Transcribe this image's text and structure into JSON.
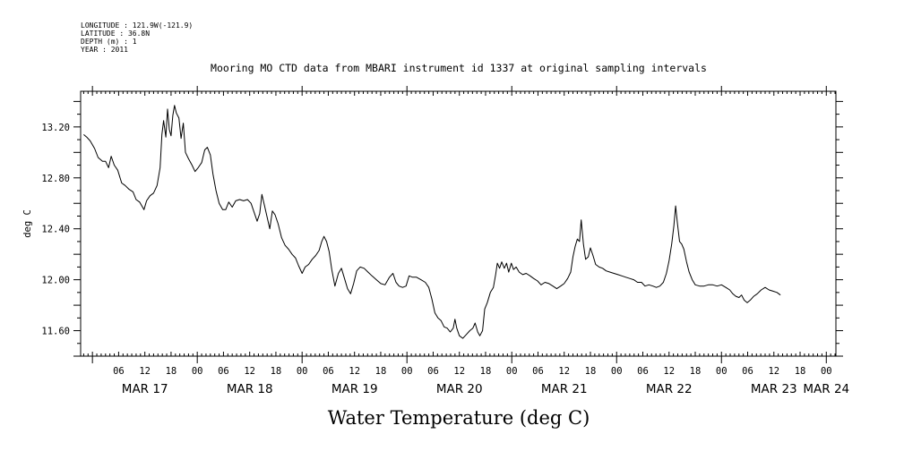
{
  "header": {
    "longitude": "LONGITUDE : 121.9W(-121.9)",
    "latitude": "LATITUDE : 36.8N",
    "depth": "DEPTH (m) : 1",
    "year": "YEAR : 2011"
  },
  "chart_data": {
    "type": "line",
    "title": "Mooring MO CTD data from MBARI instrument id 1337 at original sampling intervals",
    "xlabel": "Water Temperature (deg C)",
    "ylabel": "deg C",
    "x_units": "hours since 2011-03-17 00:00",
    "xlim": [
      -2.7,
      170.2
    ],
    "ylim": [
      11.4,
      13.48
    ],
    "y_ticks": [
      "11.60",
      "12.00",
      "12.40",
      "12.80",
      "13.20"
    ],
    "y_tick_values": [
      11.6,
      12.0,
      12.4,
      12.8,
      13.2
    ],
    "x_hour_ticks": [
      {
        "hour": 6,
        "label": "06"
      },
      {
        "hour": 12,
        "label": "12"
      },
      {
        "hour": 18,
        "label": "18"
      },
      {
        "hour": 24,
        "label": "00"
      },
      {
        "hour": 30,
        "label": "06"
      },
      {
        "hour": 36,
        "label": "12"
      },
      {
        "hour": 42,
        "label": "18"
      },
      {
        "hour": 48,
        "label": "00"
      },
      {
        "hour": 54,
        "label": "06"
      },
      {
        "hour": 60,
        "label": "12"
      },
      {
        "hour": 66,
        "label": "18"
      },
      {
        "hour": 72,
        "label": "00"
      },
      {
        "hour": 78,
        "label": "06"
      },
      {
        "hour": 84,
        "label": "12"
      },
      {
        "hour": 90,
        "label": "18"
      },
      {
        "hour": 96,
        "label": "00"
      },
      {
        "hour": 102,
        "label": "06"
      },
      {
        "hour": 108,
        "label": "12"
      },
      {
        "hour": 114,
        "label": "18"
      },
      {
        "hour": 120,
        "label": "00"
      },
      {
        "hour": 126,
        "label": "06"
      },
      {
        "hour": 132,
        "label": "12"
      },
      {
        "hour": 138,
        "label": "18"
      },
      {
        "hour": 144,
        "label": "00"
      },
      {
        "hour": 150,
        "label": "06"
      },
      {
        "hour": 156,
        "label": "12"
      },
      {
        "hour": 162,
        "label": "18"
      },
      {
        "hour": 168,
        "label": "00"
      }
    ],
    "x_date_labels": [
      {
        "hour": 12,
        "label": "MAR 17"
      },
      {
        "hour": 36,
        "label": "MAR 18"
      },
      {
        "hour": 60,
        "label": "MAR 19"
      },
      {
        "hour": 84,
        "label": "MAR 20"
      },
      {
        "hour": 108,
        "label": "MAR 21"
      },
      {
        "hour": 132,
        "label": "MAR 22"
      },
      {
        "hour": 156,
        "label": "MAR 23"
      },
      {
        "hour": 168,
        "label": "MAR 24"
      }
    ],
    "series": [
      {
        "color": "#000000",
        "points": [
          [
            -2.0,
            13.14
          ],
          [
            -1.3,
            13.12
          ],
          [
            -0.5,
            13.09
          ],
          [
            0.5,
            13.03
          ],
          [
            1.3,
            12.96
          ],
          [
            2.3,
            12.93
          ],
          [
            3.0,
            12.93
          ],
          [
            3.7,
            12.88
          ],
          [
            4.3,
            12.97
          ],
          [
            5.0,
            12.9
          ],
          [
            5.8,
            12.86
          ],
          [
            6.7,
            12.76
          ],
          [
            7.5,
            12.74
          ],
          [
            8.4,
            12.71
          ],
          [
            9.3,
            12.69
          ],
          [
            10.0,
            12.63
          ],
          [
            10.8,
            12.61
          ],
          [
            11.8,
            12.55
          ],
          [
            12.4,
            12.62
          ],
          [
            13.2,
            12.66
          ],
          [
            14.0,
            12.68
          ],
          [
            14.8,
            12.74
          ],
          [
            15.5,
            12.88
          ],
          [
            15.9,
            13.14
          ],
          [
            16.3,
            13.25
          ],
          [
            16.8,
            13.12
          ],
          [
            17.2,
            13.34
          ],
          [
            17.6,
            13.18
          ],
          [
            18.0,
            13.13
          ],
          [
            18.4,
            13.29
          ],
          [
            18.8,
            13.37
          ],
          [
            19.2,
            13.31
          ],
          [
            19.8,
            13.27
          ],
          [
            20.3,
            13.11
          ],
          [
            20.8,
            13.23
          ],
          [
            21.3,
            13.0
          ],
          [
            22.0,
            12.95
          ],
          [
            22.8,
            12.9
          ],
          [
            23.5,
            12.85
          ],
          [
            24.2,
            12.88
          ],
          [
            25.0,
            12.92
          ],
          [
            25.7,
            13.02
          ],
          [
            26.3,
            13.04
          ],
          [
            27.0,
            12.98
          ],
          [
            27.6,
            12.83
          ],
          [
            28.3,
            12.7
          ],
          [
            29.0,
            12.6
          ],
          [
            29.8,
            12.55
          ],
          [
            30.5,
            12.55
          ],
          [
            31.2,
            12.61
          ],
          [
            32.0,
            12.57
          ],
          [
            32.8,
            12.62
          ],
          [
            33.7,
            12.63
          ],
          [
            34.6,
            12.62
          ],
          [
            35.5,
            12.63
          ],
          [
            36.3,
            12.6
          ],
          [
            37.0,
            12.53
          ],
          [
            37.7,
            12.46
          ],
          [
            38.3,
            12.52
          ],
          [
            38.8,
            12.67
          ],
          [
            39.4,
            12.58
          ],
          [
            40.0,
            12.49
          ],
          [
            40.6,
            12.4
          ],
          [
            41.2,
            12.54
          ],
          [
            41.8,
            12.51
          ],
          [
            42.5,
            12.44
          ],
          [
            43.3,
            12.33
          ],
          [
            44.1,
            12.27
          ],
          [
            44.9,
            12.24
          ],
          [
            45.7,
            12.2
          ],
          [
            46.5,
            12.17
          ],
          [
            47.2,
            12.11
          ],
          [
            48.0,
            12.05
          ],
          [
            48.7,
            12.1
          ],
          [
            49.5,
            12.12
          ],
          [
            50.3,
            12.16
          ],
          [
            51.1,
            12.19
          ],
          [
            51.9,
            12.23
          ],
          [
            52.5,
            12.3
          ],
          [
            53.0,
            12.34
          ],
          [
            53.6,
            12.3
          ],
          [
            54.2,
            12.22
          ],
          [
            54.8,
            12.08
          ],
          [
            55.5,
            11.95
          ],
          [
            56.3,
            12.05
          ],
          [
            57.0,
            12.09
          ],
          [
            57.7,
            12.01
          ],
          [
            58.4,
            11.93
          ],
          [
            59.1,
            11.89
          ],
          [
            59.8,
            11.97
          ],
          [
            60.5,
            12.07
          ],
          [
            61.3,
            12.1
          ],
          [
            62.2,
            12.09
          ],
          [
            63.1,
            12.06
          ],
          [
            64.0,
            12.03
          ],
          [
            65.0,
            12.0
          ],
          [
            66.0,
            11.97
          ],
          [
            67.0,
            11.96
          ],
          [
            68.0,
            12.02
          ],
          [
            68.8,
            12.05
          ],
          [
            69.5,
            11.98
          ],
          [
            70.2,
            11.95
          ],
          [
            71.0,
            11.94
          ],
          [
            71.8,
            11.95
          ],
          [
            72.5,
            12.03
          ],
          [
            73.3,
            12.02
          ],
          [
            74.2,
            12.02
          ],
          [
            75.2,
            12.0
          ],
          [
            76.2,
            11.98
          ],
          [
            77.0,
            11.94
          ],
          [
            77.7,
            11.85
          ],
          [
            78.4,
            11.74
          ],
          [
            79.1,
            11.7
          ],
          [
            79.8,
            11.68
          ],
          [
            80.5,
            11.63
          ],
          [
            81.2,
            11.62
          ],
          [
            81.9,
            11.59
          ],
          [
            82.6,
            11.62
          ],
          [
            83.0,
            11.69
          ],
          [
            83.4,
            11.62
          ],
          [
            84.0,
            11.56
          ],
          [
            84.8,
            11.54
          ],
          [
            85.6,
            11.57
          ],
          [
            86.4,
            11.6
          ],
          [
            87.1,
            11.62
          ],
          [
            87.6,
            11.66
          ],
          [
            88.2,
            11.59
          ],
          [
            88.7,
            11.56
          ],
          [
            89.3,
            11.6
          ],
          [
            89.8,
            11.77
          ],
          [
            90.4,
            11.82
          ],
          [
            91.1,
            11.9
          ],
          [
            91.8,
            11.94
          ],
          [
            92.3,
            12.04
          ],
          [
            92.7,
            12.13
          ],
          [
            93.2,
            12.09
          ],
          [
            93.7,
            12.14
          ],
          [
            94.3,
            12.09
          ],
          [
            94.8,
            12.13
          ],
          [
            95.3,
            12.06
          ],
          [
            95.9,
            12.13
          ],
          [
            96.4,
            12.08
          ],
          [
            97.0,
            12.1
          ],
          [
            97.7,
            12.06
          ],
          [
            98.5,
            12.04
          ],
          [
            99.3,
            12.05
          ],
          [
            100.2,
            12.03
          ],
          [
            101.0,
            12.01
          ],
          [
            101.9,
            11.99
          ],
          [
            102.7,
            11.96
          ],
          [
            103.6,
            11.98
          ],
          [
            104.5,
            11.97
          ],
          [
            105.4,
            11.95
          ],
          [
            106.3,
            11.93
          ],
          [
            107.2,
            11.95
          ],
          [
            108.0,
            11.97
          ],
          [
            108.8,
            12.01
          ],
          [
            109.5,
            12.06
          ],
          [
            110.0,
            12.18
          ],
          [
            110.5,
            12.26
          ],
          [
            111.0,
            12.32
          ],
          [
            111.5,
            12.3
          ],
          [
            111.9,
            12.47
          ],
          [
            112.4,
            12.28
          ],
          [
            112.9,
            12.16
          ],
          [
            113.5,
            12.18
          ],
          [
            114.0,
            12.25
          ],
          [
            114.6,
            12.19
          ],
          [
            115.2,
            12.12
          ],
          [
            116.0,
            12.1
          ],
          [
            116.8,
            12.09
          ],
          [
            117.6,
            12.07
          ],
          [
            118.5,
            12.06
          ],
          [
            119.4,
            12.05
          ],
          [
            120.3,
            12.04
          ],
          [
            121.2,
            12.03
          ],
          [
            122.1,
            12.02
          ],
          [
            123.0,
            12.01
          ],
          [
            123.9,
            12.0
          ],
          [
            124.8,
            11.98
          ],
          [
            125.7,
            11.98
          ],
          [
            126.5,
            11.95
          ],
          [
            127.4,
            11.96
          ],
          [
            128.3,
            11.95
          ],
          [
            129.1,
            11.94
          ],
          [
            129.9,
            11.95
          ],
          [
            130.7,
            11.98
          ],
          [
            131.4,
            12.05
          ],
          [
            132.0,
            12.15
          ],
          [
            132.6,
            12.28
          ],
          [
            133.1,
            12.42
          ],
          [
            133.5,
            12.58
          ],
          [
            133.9,
            12.45
          ],
          [
            134.4,
            12.3
          ],
          [
            134.9,
            12.28
          ],
          [
            135.4,
            12.24
          ],
          [
            136.0,
            12.14
          ],
          [
            136.6,
            12.06
          ],
          [
            137.3,
            12.0
          ],
          [
            138.0,
            11.96
          ],
          [
            139.0,
            11.95
          ],
          [
            140.0,
            11.95
          ],
          [
            141.0,
            11.96
          ],
          [
            142.0,
            11.96
          ],
          [
            143.0,
            11.95
          ],
          [
            144.0,
            11.96
          ],
          [
            145.0,
            11.94
          ],
          [
            145.9,
            11.92
          ],
          [
            146.6,
            11.89
          ],
          [
            147.3,
            11.87
          ],
          [
            148.0,
            11.86
          ],
          [
            148.6,
            11.88
          ],
          [
            149.2,
            11.84
          ],
          [
            149.9,
            11.82
          ],
          [
            150.6,
            11.84
          ],
          [
            151.4,
            11.87
          ],
          [
            152.2,
            11.89
          ],
          [
            153.1,
            11.92
          ],
          [
            154.0,
            11.94
          ],
          [
            154.9,
            11.92
          ],
          [
            155.8,
            11.91
          ],
          [
            156.7,
            11.9
          ],
          [
            157.5,
            11.88
          ]
        ]
      }
    ]
  }
}
